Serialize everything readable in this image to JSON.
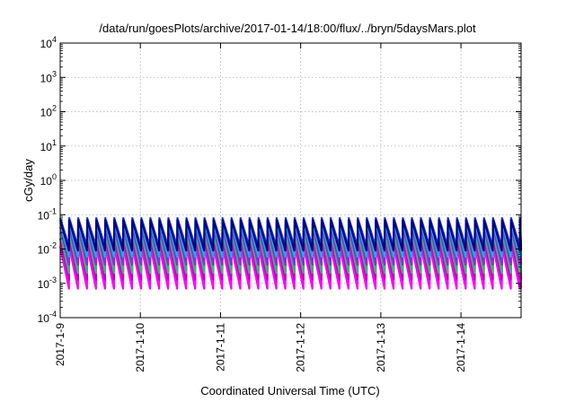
{
  "chart_data": {
    "type": "line",
    "title": "/data/run/goesPlots/archive/2017-01-14/18:00/flux/../bryn/5daysMars.plot",
    "xlabel": "Coordinated Universal Time (UTC)",
    "ylabel": "cGy/day",
    "yscale": "log",
    "ylim": [
      0.0001,
      10000
    ],
    "xlim": [
      "2017-01-09",
      "2017-01-14 18:00"
    ],
    "grid": true,
    "legend": "none",
    "y_ticks": [
      {
        "base": "10",
        "exp": "-4"
      },
      {
        "base": "10",
        "exp": "-3"
      },
      {
        "base": "10",
        "exp": "-2"
      },
      {
        "base": "10",
        "exp": "-1"
      },
      {
        "base": "10",
        "exp": "0"
      },
      {
        "base": "10",
        "exp": "1"
      },
      {
        "base": "10",
        "exp": "2"
      },
      {
        "base": "10",
        "exp": "3"
      },
      {
        "base": "10",
        "exp": "4"
      }
    ],
    "x_ticks": [
      "2017-1-9",
      "2017-1-10",
      "2017-1-11",
      "2017-1-12",
      "2017-1-13",
      "2017-1-14"
    ],
    "sawtooth_period_hours": 2.7,
    "series": [
      {
        "color": "#ff00ff",
        "peak": 0.012,
        "trough": 0.0007
      },
      {
        "color": "#c000c0",
        "peak": 0.02,
        "trough": 0.0013
      },
      {
        "color": "#3cb371",
        "peak": 0.03,
        "trough": 0.002
      },
      {
        "color": "#8a2be2",
        "peak": 0.045,
        "trough": 0.0035
      },
      {
        "color": "#00bcd4",
        "peak": 0.06,
        "trough": 0.006
      },
      {
        "color": "#1e3cff",
        "peak": 0.08,
        "trough": 0.012
      },
      {
        "color": "#000080",
        "peak": 0.07,
        "trough": 0.009
      }
    ]
  }
}
